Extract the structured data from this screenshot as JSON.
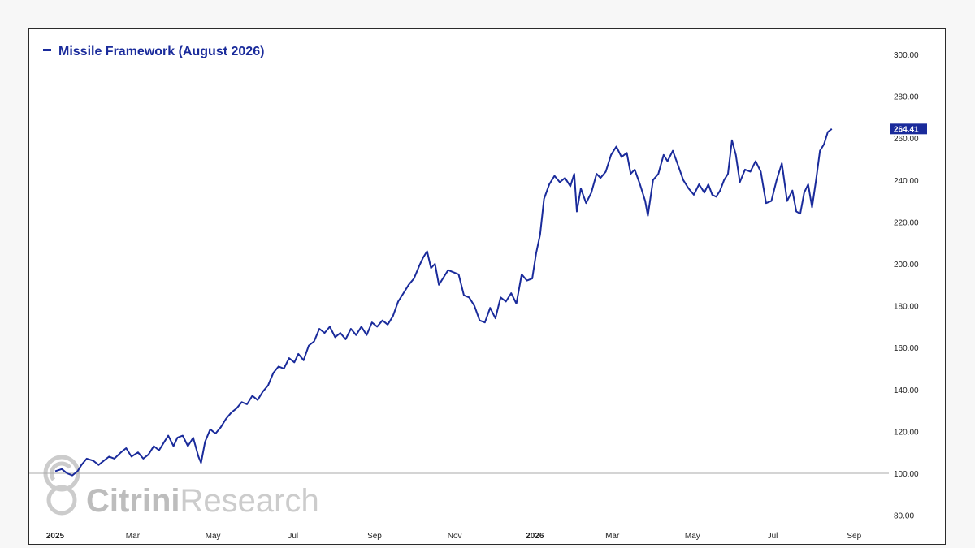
{
  "colors": {
    "series": "#1a2b9b",
    "baseline": "#aaaaaa",
    "watermark": "#cccccc",
    "watermark_bold": "#bdbdbd"
  },
  "watermark": {
    "brand": "Citrini",
    "suffix": "Research"
  },
  "chart_data": {
    "type": "line",
    "title": "",
    "xlabel": "",
    "ylabel": "",
    "ylim": [
      75,
      305
    ],
    "y_ticks": [
      "300.00",
      "280.00",
      "260.00",
      "240.00",
      "220.00",
      "200.00",
      "180.00",
      "160.00",
      "140.00",
      "120.00",
      "100.00",
      "80.00"
    ],
    "y_tick_values": [
      300,
      280,
      260,
      240,
      220,
      200,
      180,
      160,
      140,
      120,
      100,
      80
    ],
    "x_ticks": [
      {
        "label": "2025",
        "date": "2025-01-01",
        "bold": true
      },
      {
        "label": "Mar",
        "date": "2025-03-01",
        "bold": false
      },
      {
        "label": "May",
        "date": "2025-05-01",
        "bold": false
      },
      {
        "label": "Jul",
        "date": "2025-07-01",
        "bold": false
      },
      {
        "label": "Sep",
        "date": "2025-09-01",
        "bold": false
      },
      {
        "label": "Nov",
        "date": "2025-11-01",
        "bold": false
      },
      {
        "label": "2026",
        "date": "2026-01-01",
        "bold": true
      },
      {
        "label": "Mar",
        "date": "2026-03-01",
        "bold": false
      },
      {
        "label": "May",
        "date": "2026-05-01",
        "bold": false
      },
      {
        "label": "Jul",
        "date": "2026-07-01",
        "bold": false
      },
      {
        "label": "Sep",
        "date": "2026-09-01",
        "bold": false
      }
    ],
    "xlim": [
      "2025-01-01",
      "2026-09-20"
    ],
    "baseline": 100,
    "last_value_label": "264.41",
    "legend": "top-left",
    "grid": false,
    "series": [
      {
        "name": "Missile Framework (August 2026)",
        "points": [
          [
            "2025-01-01",
            101
          ],
          [
            "2025-01-06",
            102
          ],
          [
            "2025-01-10",
            100
          ],
          [
            "2025-01-14",
            99
          ],
          [
            "2025-01-18",
            101
          ],
          [
            "2025-01-21",
            104
          ],
          [
            "2025-01-25",
            107
          ],
          [
            "2025-01-30",
            106
          ],
          [
            "2025-02-03",
            104
          ],
          [
            "2025-02-07",
            106
          ],
          [
            "2025-02-11",
            108
          ],
          [
            "2025-02-15",
            107
          ],
          [
            "2025-02-20",
            110
          ],
          [
            "2025-02-24",
            112
          ],
          [
            "2025-02-28",
            108
          ],
          [
            "2025-03-05",
            110
          ],
          [
            "2025-03-09",
            107
          ],
          [
            "2025-03-13",
            109
          ],
          [
            "2025-03-17",
            113
          ],
          [
            "2025-03-21",
            111
          ],
          [
            "2025-03-25",
            115
          ],
          [
            "2025-03-28",
            118
          ],
          [
            "2025-04-01",
            113
          ],
          [
            "2025-04-04",
            117
          ],
          [
            "2025-04-08",
            118
          ],
          [
            "2025-04-12",
            113
          ],
          [
            "2025-04-16",
            117
          ],
          [
            "2025-04-20",
            108
          ],
          [
            "2025-04-22",
            105
          ],
          [
            "2025-04-25",
            115
          ],
          [
            "2025-04-29",
            121
          ],
          [
            "2025-05-03",
            119
          ],
          [
            "2025-05-07",
            122
          ],
          [
            "2025-05-11",
            126
          ],
          [
            "2025-05-15",
            129
          ],
          [
            "2025-05-19",
            131
          ],
          [
            "2025-05-23",
            134
          ],
          [
            "2025-05-27",
            133
          ],
          [
            "2025-05-31",
            137
          ],
          [
            "2025-06-04",
            135
          ],
          [
            "2025-06-08",
            139
          ],
          [
            "2025-06-12",
            142
          ],
          [
            "2025-06-16",
            148
          ],
          [
            "2025-06-20",
            151
          ],
          [
            "2025-06-24",
            150
          ],
          [
            "2025-06-28",
            155
          ],
          [
            "2025-07-02",
            153
          ],
          [
            "2025-07-05",
            157
          ],
          [
            "2025-07-09",
            154
          ],
          [
            "2025-07-13",
            161
          ],
          [
            "2025-07-17",
            163
          ],
          [
            "2025-07-21",
            169
          ],
          [
            "2025-07-25",
            167
          ],
          [
            "2025-07-29",
            170
          ],
          [
            "2025-08-02",
            165
          ],
          [
            "2025-08-06",
            167
          ],
          [
            "2025-08-10",
            164
          ],
          [
            "2025-08-14",
            169
          ],
          [
            "2025-08-18",
            166
          ],
          [
            "2025-08-22",
            170
          ],
          [
            "2025-08-26",
            166
          ],
          [
            "2025-08-30",
            172
          ],
          [
            "2025-09-03",
            170
          ],
          [
            "2025-09-07",
            173
          ],
          [
            "2025-09-11",
            171
          ],
          [
            "2025-09-15",
            175
          ],
          [
            "2025-09-19",
            182
          ],
          [
            "2025-09-23",
            186
          ],
          [
            "2025-09-27",
            190
          ],
          [
            "2025-10-01",
            193
          ],
          [
            "2025-10-05",
            199
          ],
          [
            "2025-10-08",
            203
          ],
          [
            "2025-10-11",
            206
          ],
          [
            "2025-10-14",
            198
          ],
          [
            "2025-10-17",
            200
          ],
          [
            "2025-10-20",
            190
          ],
          [
            "2025-10-24",
            194
          ],
          [
            "2025-10-27",
            197
          ],
          [
            "2025-10-31",
            196
          ],
          [
            "2025-11-04",
            195
          ],
          [
            "2025-11-08",
            185
          ],
          [
            "2025-11-12",
            184
          ],
          [
            "2025-11-16",
            180
          ],
          [
            "2025-11-20",
            173
          ],
          [
            "2025-11-24",
            172
          ],
          [
            "2025-11-28",
            179
          ],
          [
            "2025-12-02",
            174
          ],
          [
            "2025-12-06",
            184
          ],
          [
            "2025-12-10",
            182
          ],
          [
            "2025-12-14",
            186
          ],
          [
            "2025-12-18",
            181
          ],
          [
            "2025-12-22",
            195
          ],
          [
            "2025-12-26",
            192
          ],
          [
            "2025-12-30",
            193
          ],
          [
            "2026-01-02",
            205
          ],
          [
            "2026-01-05",
            214
          ],
          [
            "2026-01-08",
            231
          ],
          [
            "2026-01-12",
            238
          ],
          [
            "2026-01-16",
            242
          ],
          [
            "2026-01-20",
            239
          ],
          [
            "2026-01-24",
            241
          ],
          [
            "2026-01-28",
            237
          ],
          [
            "2026-01-31",
            243
          ],
          [
            "2026-02-02",
            225
          ],
          [
            "2026-02-05",
            236
          ],
          [
            "2026-02-09",
            229
          ],
          [
            "2026-02-13",
            234
          ],
          [
            "2026-02-17",
            243
          ],
          [
            "2026-02-20",
            241
          ],
          [
            "2026-02-24",
            244
          ],
          [
            "2026-02-28",
            252
          ],
          [
            "2026-03-04",
            256
          ],
          [
            "2026-03-08",
            251
          ],
          [
            "2026-03-12",
            253
          ],
          [
            "2026-03-15",
            243
          ],
          [
            "2026-03-18",
            245
          ],
          [
            "2026-03-22",
            238
          ],
          [
            "2026-03-26",
            230
          ],
          [
            "2026-03-28",
            223
          ],
          [
            "2026-04-01",
            240
          ],
          [
            "2026-04-05",
            243
          ],
          [
            "2026-04-09",
            252
          ],
          [
            "2026-04-12",
            249
          ],
          [
            "2026-04-16",
            254
          ],
          [
            "2026-04-20",
            247
          ],
          [
            "2026-04-24",
            240
          ],
          [
            "2026-04-28",
            236
          ],
          [
            "2026-05-02",
            233
          ],
          [
            "2026-05-06",
            238
          ],
          [
            "2026-05-10",
            234
          ],
          [
            "2026-05-13",
            238
          ],
          [
            "2026-05-16",
            233
          ],
          [
            "2026-05-19",
            232
          ],
          [
            "2026-05-22",
            235
          ],
          [
            "2026-05-25",
            240
          ],
          [
            "2026-05-28",
            243
          ],
          [
            "2026-05-31",
            259
          ],
          [
            "2026-06-03",
            252
          ],
          [
            "2026-06-06",
            239
          ],
          [
            "2026-06-10",
            245
          ],
          [
            "2026-06-14",
            244
          ],
          [
            "2026-06-18",
            249
          ],
          [
            "2026-06-22",
            244
          ],
          [
            "2026-06-26",
            229
          ],
          [
            "2026-06-30",
            230
          ],
          [
            "2026-07-04",
            240
          ],
          [
            "2026-07-08",
            248
          ],
          [
            "2026-07-12",
            230
          ],
          [
            "2026-07-16",
            235
          ],
          [
            "2026-07-19",
            225
          ],
          [
            "2026-07-22",
            224
          ],
          [
            "2026-07-25",
            234
          ],
          [
            "2026-07-28",
            238
          ],
          [
            "2026-07-31",
            227
          ],
          [
            "2026-08-03",
            240
          ],
          [
            "2026-08-06",
            254
          ],
          [
            "2026-08-09",
            257
          ],
          [
            "2026-08-12",
            263
          ],
          [
            "2026-08-15",
            264.41
          ]
        ]
      }
    ]
  }
}
